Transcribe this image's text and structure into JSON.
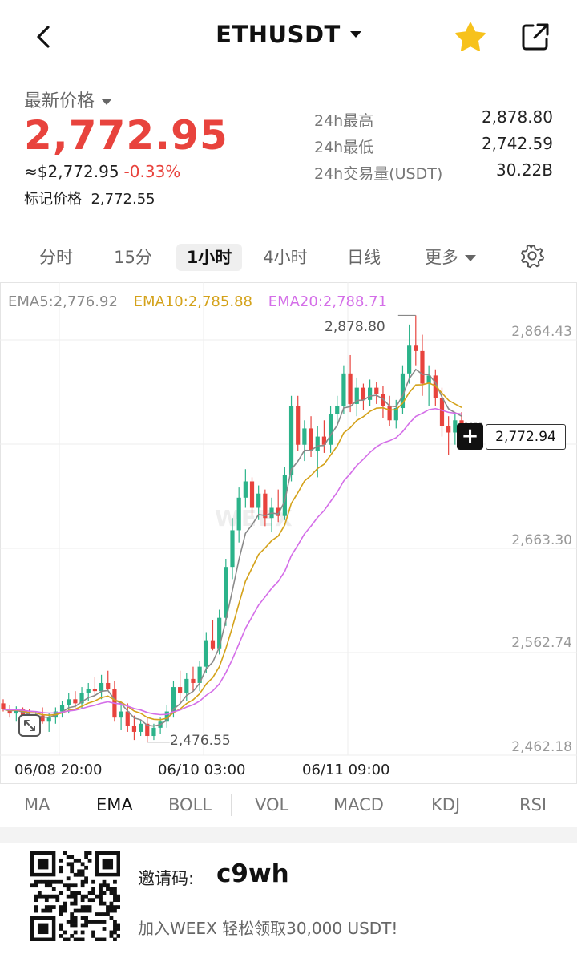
{
  "header": {
    "title": "ETHUSDT"
  },
  "price": {
    "label": "最新价格",
    "last": "2,772.95",
    "usd": "≈$2,772.95",
    "change": "-0.33%",
    "mark_label": "标记价格",
    "mark_value": "2,772.55",
    "stats": [
      {
        "label": "24h最高",
        "value": "2,878.80"
      },
      {
        "label": "24h最低",
        "value": "2,742.59"
      },
      {
        "label": "24h交易量(USDT)",
        "value": "30.22B"
      }
    ],
    "down_color": "#e8433d"
  },
  "timeframes": {
    "items": [
      "分时",
      "15分",
      "1小时",
      "4小时",
      "日线"
    ],
    "active": "1小时",
    "more": "更多"
  },
  "chart": {
    "ema_legend": [
      {
        "label": "EMA5:2,776.92",
        "color": "#8a8a8a"
      },
      {
        "label": "EMA10:2,785.88",
        "color": "#d4a21a"
      },
      {
        "label": "EMA20:2,788.71",
        "color": "#d46ee8"
      }
    ],
    "y_ticks": [
      "2,864.43",
      "2,663.30",
      "2,562.74",
      "2,462.18"
    ],
    "x_ticks": [
      "06/08 20:00",
      "06/10 03:00",
      "06/11 09:00"
    ],
    "high_label": "2,878.80",
    "low_label": "2,476.55",
    "current_price": "2,772.94",
    "watermark": "WEEX"
  },
  "chart_data": {
    "type": "candlestick",
    "ylim": [
      2455,
      2888
    ],
    "up_color": "#2bb38a",
    "down_color": "#e8433d",
    "ohlc": [
      [
        2498,
        2502,
        2490,
        2492
      ],
      [
        2492,
        2496,
        2484,
        2488
      ],
      [
        2488,
        2495,
        2480,
        2492
      ],
      [
        2492,
        2494,
        2482,
        2486
      ],
      [
        2486,
        2492,
        2476,
        2482
      ],
      [
        2482,
        2490,
        2474,
        2486
      ],
      [
        2486,
        2494,
        2478,
        2480
      ],
      [
        2480,
        2488,
        2470,
        2484
      ],
      [
        2484,
        2494,
        2478,
        2490
      ],
      [
        2490,
        2500,
        2484,
        2496
      ],
      [
        2496,
        2508,
        2488,
        2502
      ],
      [
        2502,
        2510,
        2494,
        2498
      ],
      [
        2498,
        2514,
        2492,
        2508
      ],
      [
        2508,
        2518,
        2500,
        2512
      ],
      [
        2512,
        2524,
        2504,
        2510
      ],
      [
        2510,
        2526,
        2502,
        2518
      ],
      [
        2518,
        2530,
        2510,
        2512
      ],
      [
        2512,
        2520,
        2480,
        2484
      ],
      [
        2484,
        2496,
        2472,
        2490
      ],
      [
        2490,
        2498,
        2470,
        2476
      ],
      [
        2476,
        2486,
        2462,
        2470
      ],
      [
        2470,
        2482,
        2466,
        2478
      ],
      [
        2478,
        2484,
        2460,
        2466
      ],
      [
        2466,
        2478,
        2462,
        2474
      ],
      [
        2474,
        2484,
        2468,
        2480
      ],
      [
        2480,
        2496,
        2474,
        2490
      ],
      [
        2490,
        2520,
        2484,
        2514
      ],
      [
        2514,
        2530,
        2498,
        2508
      ],
      [
        2508,
        2528,
        2500,
        2522
      ],
      [
        2522,
        2534,
        2510,
        2518
      ],
      [
        2518,
        2540,
        2510,
        2534
      ],
      [
        2534,
        2568,
        2528,
        2560
      ],
      [
        2560,
        2580,
        2550,
        2552
      ],
      [
        2552,
        2590,
        2546,
        2582
      ],
      [
        2582,
        2640,
        2574,
        2632
      ],
      [
        2632,
        2680,
        2620,
        2668
      ],
      [
        2668,
        2710,
        2656,
        2700
      ],
      [
        2700,
        2728,
        2690,
        2716
      ],
      [
        2716,
        2720,
        2682,
        2690
      ],
      [
        2690,
        2712,
        2678,
        2704
      ],
      [
        2704,
        2708,
        2672,
        2680
      ],
      [
        2680,
        2700,
        2666,
        2690
      ],
      [
        2690,
        2708,
        2676,
        2682
      ],
      [
        2682,
        2730,
        2678,
        2722
      ],
      [
        2722,
        2800,
        2716,
        2790
      ],
      [
        2790,
        2800,
        2746,
        2752
      ],
      [
        2752,
        2776,
        2736,
        2768
      ],
      [
        2768,
        2780,
        2740,
        2746
      ],
      [
        2746,
        2770,
        2720,
        2760
      ],
      [
        2760,
        2776,
        2744,
        2752
      ],
      [
        2752,
        2790,
        2744,
        2782
      ],
      [
        2782,
        2800,
        2770,
        2790
      ],
      [
        2790,
        2830,
        2782,
        2822
      ],
      [
        2822,
        2840,
        2784,
        2792
      ],
      [
        2792,
        2818,
        2780,
        2808
      ],
      [
        2808,
        2812,
        2786,
        2796
      ],
      [
        2796,
        2816,
        2790,
        2808
      ],
      [
        2808,
        2814,
        2792,
        2802
      ],
      [
        2802,
        2810,
        2778,
        2790
      ],
      [
        2790,
        2800,
        2770,
        2776
      ],
      [
        2776,
        2796,
        2768,
        2788
      ],
      [
        2788,
        2830,
        2782,
        2822
      ],
      [
        2822,
        2870,
        2812,
        2850
      ],
      [
        2850,
        2879,
        2830,
        2844
      ],
      [
        2844,
        2860,
        2800,
        2812
      ],
      [
        2812,
        2830,
        2790,
        2820
      ],
      [
        2820,
        2826,
        2790,
        2798
      ],
      [
        2798,
        2808,
        2760,
        2770
      ],
      [
        2770,
        2780,
        2742,
        2764
      ],
      [
        2764,
        2782,
        2752,
        2776
      ],
      [
        2776,
        2784,
        2758,
        2773
      ]
    ]
  },
  "indicators": {
    "items": [
      "MA",
      "EMA",
      "BOLL",
      "VOL",
      "MACD",
      "KDJ",
      "RSI"
    ],
    "active": "EMA"
  },
  "footer": {
    "invite_label": "邀请码:",
    "invite_code": "c9wh",
    "promo": "加入WEEX 轻松领取30,000 USDT!"
  }
}
